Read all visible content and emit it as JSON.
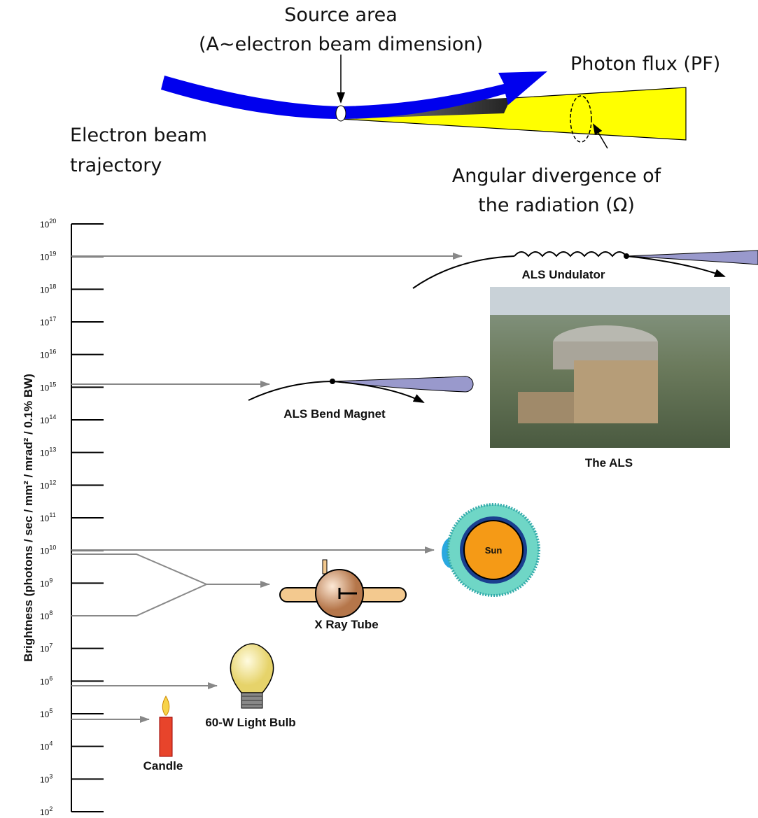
{
  "diagram": {
    "source_area": "Source area",
    "source_area_note": "(A~electron beam dimension)",
    "photon_flux": "Photon flux (PF)",
    "electron_beam": [
      "Electron beam",
      "trajectory"
    ],
    "divergence": [
      "Angular divergence of",
      "the radiation (Ω)"
    ]
  },
  "scale": {
    "axis_label": "Brightness (photons / sec / mm² / mrad² / 0.1% BW)",
    "ticks": [
      {
        "base": "10",
        "exp": "20"
      },
      {
        "base": "10",
        "exp": "19"
      },
      {
        "base": "10",
        "exp": "18"
      },
      {
        "base": "10",
        "exp": "17"
      },
      {
        "base": "10",
        "exp": "16"
      },
      {
        "base": "10",
        "exp": "15"
      },
      {
        "base": "10",
        "exp": "14"
      },
      {
        "base": "10",
        "exp": "13"
      },
      {
        "base": "10",
        "exp": "12"
      },
      {
        "base": "10",
        "exp": "11"
      },
      {
        "base": "10",
        "exp": "10"
      },
      {
        "base": "10",
        "exp": "9"
      },
      {
        "base": "10",
        "exp": "8"
      },
      {
        "base": "10",
        "exp": "7"
      },
      {
        "base": "10",
        "exp": "6"
      },
      {
        "base": "10",
        "exp": "5"
      },
      {
        "base": "10",
        "exp": "4"
      },
      {
        "base": "10",
        "exp": "3"
      },
      {
        "base": "10",
        "exp": "2"
      }
    ]
  },
  "sources": {
    "undulator": "ALS Undulator",
    "bend_magnet": "ALS Bend Magnet",
    "als": "The ALS",
    "sun": "Sun",
    "xray_tube": "X Ray Tube",
    "light_bulb": "60-W Light Bulb",
    "candle": "Candle"
  }
}
